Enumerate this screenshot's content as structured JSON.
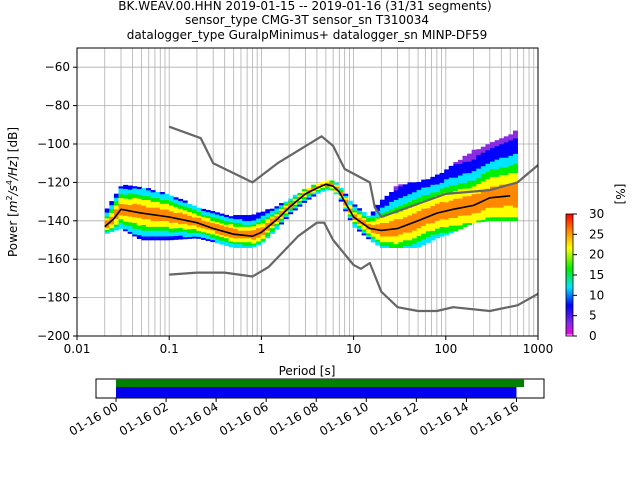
{
  "header": {
    "line1": "BK.WEAV.00.HHN   2019-01-15 -- 2019-01-16  (31/31 segments)",
    "line2": "sensor_type CMG-3T sensor_sn T310034",
    "line3": "datalogger_type GuralpMinimus+ datalogger_sn MINP-DF59"
  },
  "colors": {
    "noise_model": "#666666",
    "mean_line": "#000000",
    "grid": "#b0b0b0",
    "coverage_data": "#0000ee",
    "coverage_gaps_free": "#008000"
  },
  "chart_data": [
    {
      "type": "heatmap",
      "title": "",
      "xlabel": "Period [s]",
      "ylabel": "Power [m²/s⁴/Hz] [dB]",
      "ylabel_parts": {
        "a": "Power [",
        "b": "m",
        "c": "2",
        "d": "/s",
        "e": "4",
        "f": "/Hz",
        "g": "] [dB]"
      },
      "x_scale": "log",
      "xlim": [
        0.01,
        1000
      ],
      "ylim": [
        -200,
        -50
      ],
      "x_tick_values": [
        0.01,
        0.1,
        1,
        10,
        100,
        1000
      ],
      "x_tick_labels": [
        "0.01",
        "0.1",
        "1",
        "10",
        "100",
        "1000"
      ],
      "y_tick_values": [
        -200,
        -180,
        -160,
        -140,
        -120,
        -100,
        -80,
        -60
      ],
      "y_tick_labels": [
        "−200",
        "−180",
        "−160",
        "−140",
        "−120",
        "−100",
        "−80",
        "−60"
      ],
      "grid": true,
      "colorbar": {
        "label": "[%]",
        "range": [
          0,
          30
        ],
        "tick_values": [
          0,
          5,
          10,
          15,
          20,
          25,
          30
        ],
        "tick_labels": [
          "0",
          "5",
          "10",
          "15",
          "20",
          "25",
          "30"
        ]
      },
      "series": [
        {
          "style": "noise_model",
          "x": [
            0.1,
            0.22,
            0.3,
            0.8,
            1.5,
            4.5,
            6,
            8,
            15,
            17,
            20,
            100,
            300,
            600,
            1000
          ],
          "y": [
            -91,
            -97,
            -110,
            -120,
            -110,
            -96,
            -101,
            -113,
            -120,
            -133,
            -138,
            -126,
            -124,
            -120,
            -111
          ]
        },
        {
          "style": "noise_model",
          "x": [
            0.1,
            0.2,
            0.4,
            0.8,
            1.2,
            2.5,
            4,
            4.8,
            6,
            10,
            12,
            15,
            20,
            30,
            50,
            80,
            120,
            300,
            600,
            1000
          ],
          "y": [
            -168,
            -167,
            -167,
            -169,
            -164,
            -148,
            -141,
            -141,
            -150,
            -163,
            -165,
            -162,
            -177,
            -185,
            -187,
            -187,
            -185,
            -187,
            -184,
            -178
          ]
        },
        {
          "style": "mean",
          "x": [
            0.02,
            0.025,
            0.03,
            0.05,
            0.1,
            0.2,
            0.3,
            0.5,
            0.8,
            1.0,
            1.5,
            2,
            3,
            4,
            5,
            6,
            7,
            8,
            10,
            15,
            20,
            30,
            50,
            80,
            120,
            200,
            300,
            500
          ],
          "y": [
            -143,
            -139,
            -134,
            -136,
            -138,
            -141,
            -144,
            -147,
            -148,
            -146,
            -139,
            -133,
            -126,
            -123,
            -121,
            -122,
            -125,
            -130,
            -138,
            -144,
            -145,
            -144,
            -140,
            -136,
            -134,
            -132,
            -128,
            -127
          ]
        }
      ],
      "density": [
        {
          "period": [
            0.02,
            0.03,
            0.05,
            0.1,
            0.2,
            0.3,
            0.5,
            0.8,
            1.0,
            1.5,
            2,
            3,
            4,
            5,
            6,
            7,
            8,
            10,
            15,
            20,
            30,
            50,
            80,
            120,
            200,
            300,
            500,
            600
          ],
          "upper": [
            -136,
            -122,
            -123,
            -127,
            -133,
            -136,
            -138,
            -138,
            -136,
            -133,
            -129,
            -124,
            -121,
            -120,
            -120,
            -122,
            -126,
            -132,
            -138,
            -130,
            -122,
            -120,
            -117,
            -111,
            -104,
            -100,
            -96,
            -92
          ],
          "lower": [
            -147,
            -144,
            -150,
            -150,
            -149,
            -151,
            -154,
            -154,
            -152,
            -144,
            -137,
            -130,
            -126,
            -124,
            -124,
            -128,
            -134,
            -143,
            -150,
            -154,
            -154,
            -154,
            -149,
            -146,
            -141,
            -140,
            -140,
            -140
          ]
        }
      ]
    },
    {
      "type": "coverage",
      "x_tick_labels": [
        "01-16 00",
        "01-16 02",
        "01-16 04",
        "01-16 06",
        "01-16 08",
        "01-16 10",
        "01-16 12",
        "01-16 14",
        "01-16 16"
      ],
      "x_tick_hours": [
        0,
        2,
        4,
        6,
        8,
        10,
        12,
        14,
        16
      ],
      "xlim_hours": [
        -0.8,
        17.1
      ],
      "bars": [
        {
          "kind": "gaps_free",
          "start_hour": 0,
          "end_hour": 16.3
        },
        {
          "kind": "data",
          "start_hour": 0,
          "end_hour": 16.0
        }
      ]
    }
  ]
}
